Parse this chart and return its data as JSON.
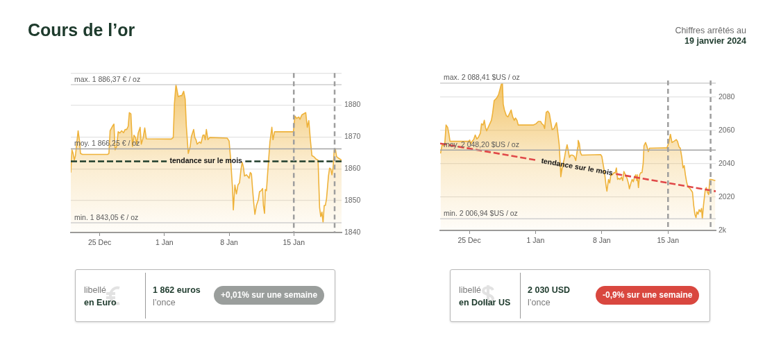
{
  "chart_data": [
    {
      "type": "other",
      "title": "Cours de l’or",
      "annotations": [
        "Chiffres arrêtés au",
        "19 janvier 2024"
      ]
    },
    {
      "type": "area",
      "xlim": [
        "2023-12-21T21:00",
        "2024-01-20T04:00"
      ],
      "xticks": [
        {
          "value": "2023-12-25",
          "label": "25 Dec"
        },
        {
          "value": "2024-01-01",
          "label": "1 Jan"
        },
        {
          "value": "2024-01-08",
          "label": "8 Jan"
        },
        {
          "value": "2024-01-15",
          "label": "15 Jan"
        }
      ],
      "ylim": [
        1840,
        1890
      ],
      "yticks": [
        1840,
        1850,
        1860,
        1870,
        1880,
        {
          "value": 1890,
          "label": null
        }
      ],
      "grid": "y",
      "series": [
        {
          "type": "area",
          "color": "#eeb23a",
          "x": [
            "2023-12-21T21:00",
            "2023-12-22T00:00",
            "2023-12-22T03:00",
            "2023-12-22T06:00",
            "2023-12-22T09:00",
            "2023-12-22T16:00",
            "2023-12-22T20:00",
            "2023-12-22T22:00",
            "2023-12-23T03:00",
            "2023-12-25T21:00",
            "2023-12-26T00:00",
            "2023-12-26T03:00",
            "2023-12-26T09:00",
            "2023-12-26T13:00",
            "2023-12-26T16:00",
            "2023-12-26T20:00",
            "2023-12-27T00:00",
            "2023-12-27T04:00",
            "2023-12-27T09:00",
            "2023-12-27T14:00",
            "2023-12-27T18:00",
            "2023-12-27T22:00",
            "2023-12-28T02:00",
            "2023-12-28T05:00",
            "2023-12-28T09:00",
            "2023-12-28T13:00",
            "2023-12-28T17:00",
            "2023-12-28T21:00",
            "2023-12-29T00:00",
            "2023-12-29T04:00",
            "2023-12-29T09:00",
            "2023-12-29T12:00",
            "2023-12-29T17:00",
            "2023-12-29T21:00",
            "2023-12-30T01:00",
            "2024-01-01T18:00",
            "2024-01-01T23:00",
            "2024-01-02T02:00",
            "2024-01-02T06:00",
            "2024-01-02T12:00",
            "2024-01-02T17:00",
            "2024-01-02T21:00",
            "2024-01-03T02:00",
            "2024-01-03T06:00",
            "2024-01-03T09:00",
            "2024-01-03T14:00",
            "2024-01-03T19:00",
            "2024-01-03T22:00",
            "2024-01-04T04:00",
            "2024-01-04T07:00",
            "2024-01-04T10:00",
            "2024-01-04T13:00",
            "2024-01-04T19:00",
            "2024-01-04T23:00",
            "2024-01-05T04:00",
            "2024-01-05T07:00",
            "2024-01-05T10:00",
            "2024-01-05T13:00",
            "2024-01-05T17:00",
            "2024-01-05T22:00",
            "2024-01-07T19:00",
            "2024-01-08T00:00",
            "2024-01-08T04:00",
            "2024-01-08T09:00",
            "2024-01-08T11:00",
            "2024-01-08T15:00",
            "2024-01-08T19:00",
            "2024-01-08T23:00",
            "2024-01-09T03:00",
            "2024-01-09T07:00",
            "2024-01-09T10:00",
            "2024-01-09T13:00",
            "2024-01-09T16:00",
            "2024-01-09T21:00",
            "2024-01-10T00:00",
            "2024-01-10T04:00",
            "2024-01-10T07:00",
            "2024-01-10T10:00",
            "2024-01-10T13:00",
            "2024-01-10T16:00",
            "2024-01-10T19:00",
            "2024-01-10T23:00",
            "2024-01-11T04:00",
            "2024-01-11T07:00",
            "2024-01-11T11:00",
            "2024-01-11T15:00",
            "2024-01-11T17:00",
            "2024-01-11T20:00",
            "2024-01-11T22:00",
            "2024-01-12T01:00",
            "2024-01-12T04:00",
            "2024-01-12T10:00",
            "2024-01-12T15:00",
            "2024-01-12T18:00",
            "2024-01-12T22:00",
            "2024-01-14T23:00",
            "2024-01-15T03:00",
            "2024-01-15T07:00",
            "2024-01-15T13:00",
            "2024-01-15T16:00",
            "2024-01-15T21:00",
            "2024-01-16T07:00",
            "2024-01-16T11:00",
            "2024-01-16T15:00",
            "2024-01-16T19:00",
            "2024-01-16T23:00",
            "2024-01-17T04:00",
            "2024-01-17T10:00",
            "2024-01-17T15:00",
            "2024-01-17T19:00",
            "2024-01-17T22:00",
            "2024-01-18T01:00",
            "2024-01-18T04:00",
            "2024-01-18T07:00",
            "2024-01-18T10:00",
            "2024-01-18T13:00",
            "2024-01-18T18:00",
            "2024-01-18T21:00",
            "2024-01-19T00:00",
            "2024-01-19T03:00",
            "2024-01-19T06:00",
            "2024-01-19T09:00",
            "2024-01-19T12:00",
            "2024-01-19T15:00",
            "2024-01-19T19:00",
            "2024-01-20T04:00"
          ],
          "values": [
            1858.8,
            1865.9,
            1864.8,
            1862.7,
            1864.1,
            1871.9,
            1868.4,
            1864.8,
            1864.5,
            1864.5,
            1864.8,
            1871.9,
            1873.3,
            1874.0,
            1865.9,
            1867.0,
            1871.6,
            1871.2,
            1871.9,
            1871.3,
            1872.3,
            1872.3,
            1873.3,
            1877.6,
            1877.2,
            1867.0,
            1870.5,
            1869.8,
            1867.7,
            1871.2,
            1873.0,
            1867.7,
            1869.8,
            1872.8,
            1869.4,
            1869.3,
            1869.8,
            1880.4,
            1886.4,
            1882.6,
            1882.9,
            1882.9,
            1884.3,
            1881.8,
            1873.3,
            1864.8,
            1867.0,
            1870.1,
            1872.3,
            1869.8,
            1869.1,
            1867.7,
            1868.4,
            1868.0,
            1870.5,
            1870.6,
            1869.1,
            1872.3,
            1869.1,
            1869.8,
            1869.6,
            1868.7,
            1863.0,
            1853.5,
            1847.1,
            1854.9,
            1852.1,
            1854.9,
            1855.6,
            1859.9,
            1862.0,
            1860.6,
            1857.7,
            1858.1,
            1857.7,
            1857.0,
            1858.8,
            1858.4,
            1853.5,
            1849.2,
            1845.7,
            1848.5,
            1850.3,
            1852.8,
            1853.1,
            1853.8,
            1848.5,
            1846.0,
            1853.5,
            1853.1,
            1858.4,
            1868.4,
            1873.0,
            1869.1,
            1871.6,
            1871.6,
            1876.5,
            1875.8,
            1876.2,
            1875.5,
            1876.9,
            1877.6,
            1873.0,
            1875.1,
            1869.1,
            1864.1,
            1863.8,
            1863.0,
            1862.7,
            1847.8,
            1845.0,
            1846.4,
            1843.1,
            1848.5,
            1848.5,
            1850.6,
            1857.7,
            1860.2,
            1859.9,
            1858.1,
            1860.2,
            1865.9,
            1866.2,
            1863.8,
            1863.4,
            1862.7
          ]
        },
        {
          "type": "line",
          "name": "tendance sur le mois",
          "color": "#1f3d2b",
          "line_style": "dashed",
          "x": [
            "2023-12-21T21:00",
            "2024-01-01T06:00",
            "2024-01-05T12:00",
            "2024-01-09T18:00",
            "2024-01-20T04:00"
          ],
          "values": [
            1862.3,
            1862.3,
            null,
            1862.3,
            1862.3
          ]
        }
      ],
      "ref_lines": [
        {
          "axis": "y",
          "value": 1886.37,
          "label": "max. 1 886,37 € / oz",
          "color": "#cfcfcf"
        },
        {
          "axis": "y",
          "value": 1866.25,
          "label": "moy. 1 866,25 € / oz",
          "color": "#a3a3a3"
        },
        {
          "axis": "y",
          "value": 1843.05,
          "label": "min. 1 843,05 € / oz",
          "color": "#cfcfcf"
        },
        {
          "axis": "x",
          "value": "2024-01-15",
          "color": "#9e9e9e",
          "line_style": "dashed"
        },
        {
          "axis": "x",
          "value": "2024-01-19T10:00",
          "color": "#9e9e9e",
          "line_style": "dashed"
        }
      ]
    },
    {
      "type": "area",
      "xlim": [
        "2023-12-21T22:00",
        "2024-01-20T01:00"
      ],
      "xticks": [
        {
          "value": "2023-12-25",
          "label": "25 Dec"
        },
        {
          "value": "2024-01-01",
          "label": "1 Jan"
        },
        {
          "value": "2024-01-08",
          "label": "8 Jan"
        },
        {
          "value": "2024-01-15",
          "label": "15 Jan"
        }
      ],
      "ylim": [
        2000,
        2090
      ],
      "yticks": [
        {
          "value": 2000,
          "label": "2k"
        },
        2020,
        2040,
        2060,
        2080
      ],
      "grid": "y",
      "series": [
        {
          "type": "area",
          "color": "#eeb23a",
          "x": [
            "2023-12-21T23:00",
            "2023-12-22T03:00",
            "2023-12-22T07:00",
            "2023-12-22T10:00",
            "2023-12-22T13:00",
            "2023-12-22T17:00",
            "2023-12-22T20:00",
            "2023-12-22T23:00",
            "2023-12-24T22:00",
            "2023-12-25T01:00",
            "2023-12-25T04:00",
            "2023-12-25T07:00",
            "2023-12-25T11:00",
            "2023-12-25T15:00",
            "2023-12-25T19:00",
            "2023-12-25T23:00",
            "2023-12-26T04:00",
            "2023-12-26T07:00",
            "2023-12-26T11:00",
            "2023-12-26T14:00",
            "2023-12-26T17:00",
            "2023-12-26T20:00",
            "2023-12-27T00:00",
            "2023-12-27T04:00",
            "2023-12-27T08:00",
            "2023-12-27T11:00",
            "2023-12-27T15:00",
            "2023-12-27T21:00",
            "2023-12-28T02:00",
            "2023-12-28T06:00",
            "2023-12-28T09:00",
            "2023-12-28T12:00",
            "2023-12-28T14:00",
            "2023-12-28T17:00",
            "2023-12-28T22:00",
            "2023-12-29T02:00",
            "2023-12-29T06:00",
            "2023-12-29T10:00",
            "2023-12-29T14:00",
            "2023-12-29T18:00",
            "2023-12-29T21:00",
            "2023-12-30T01:00",
            "2023-12-30T04:00",
            "2023-12-31T19:00",
            "2024-01-01T01:00",
            "2024-01-01T07:00",
            "2024-01-01T13:00",
            "2024-01-01T16:00",
            "2024-01-01T20:00",
            "2024-01-01T23:00",
            "2024-01-02T03:00",
            "2024-01-02T07:00",
            "2024-01-02T11:00",
            "2024-01-02T15:00",
            "2024-01-02T18:00",
            "2024-01-02T23:00",
            "2024-01-03T05:00",
            "2024-01-03T08:00",
            "2024-01-03T12:00",
            "2024-01-03T15:00",
            "2024-01-03T16:00",
            "2024-01-03T20:00",
            "2024-01-04T01:00",
            "2024-01-04T04:00",
            "2024-01-04T08:00",
            "2024-01-04T11:00",
            "2024-01-04T14:00",
            "2024-01-04T17:00",
            "2024-01-04T22:00",
            "2024-01-05T02:00",
            "2024-01-05T06:00",
            "2024-01-05T11:00",
            "2024-01-05T12:00",
            "2024-01-05T15:00",
            "2024-01-05T18:00",
            "2024-01-05T21:00",
            "2024-01-07T21:00",
            "2024-01-08T00:00",
            "2024-01-08T03:00",
            "2024-01-08T07:00",
            "2024-01-08T11:00",
            "2024-01-08T13:00",
            "2024-01-08T17:00",
            "2024-01-08T20:00",
            "2024-01-08T23:00",
            "2024-01-09T03:00",
            "2024-01-09T07:00",
            "2024-01-09T10:00",
            "2024-01-09T13:00",
            "2024-01-09T16:00",
            "2024-01-09T19:00",
            "2024-01-09T22:00",
            "2024-01-10T02:00",
            "2024-01-10T05:00",
            "2024-01-10T08:00",
            "2024-01-10T12:00",
            "2024-01-10T16:00",
            "2024-01-10T20:00",
            "2024-01-10T22:00",
            "2024-01-11T02:00",
            "2024-01-11T05:00",
            "2024-01-11T08:00",
            "2024-01-11T11:00",
            "2024-01-11T14:00",
            "2024-01-11T17:00",
            "2024-01-11T18:00",
            "2024-01-11T21:00",
            "2024-01-12T00:00",
            "2024-01-12T03:00",
            "2024-01-12T06:00",
            "2024-01-12T09:00",
            "2024-01-12T11:00",
            "2024-01-12T15:00",
            "2024-01-12T18:00",
            "2024-01-12T22:00",
            "2024-01-13T01:00",
            "2024-01-14T18:00",
            "2024-01-14T21:00",
            "2024-01-15T02:00",
            "2024-01-15T06:00",
            "2024-01-15T10:00",
            "2024-01-15T15:00",
            "2024-01-15T21:00",
            "2024-01-16T00:00",
            "2024-01-16T04:00",
            "2024-01-16T07:00",
            "2024-01-16T11:00",
            "2024-01-16T14:00",
            "2024-01-16T17:00",
            "2024-01-16T20:00",
            "2024-01-16T23:00",
            "2024-01-17T02:00",
            "2024-01-17T08:00",
            "2024-01-17T14:00",
            "2024-01-17T17:00",
            "2024-01-17T20:00",
            "2024-01-17T23:00",
            "2024-01-18T01:00",
            "2024-01-18T04:00",
            "2024-01-18T07:00",
            "2024-01-18T10:00",
            "2024-01-18T13:00",
            "2024-01-18T15:00",
            "2024-01-18T18:00",
            "2024-01-18T22:00",
            "2024-01-19T01:00",
            "2024-01-19T04:00",
            "2024-01-19T07:00",
            "2024-01-19T10:00",
            "2024-01-19T13:00",
            "2024-01-20T00:00"
          ],
          "values": [
            2046.2,
            2051.4,
            2050.8,
            2052.8,
            2063.3,
            2061.9,
            2058.4,
            2053.5,
            2053.5,
            2054.2,
            2052.1,
            2053.5,
            2054.5,
            2057.3,
            2054.9,
            2055.9,
            2058.4,
            2064.0,
            2063.3,
            2066.1,
            2061.9,
            2059.8,
            2061.9,
            2064.0,
            2066.1,
            2070.2,
            2077.9,
            2079.3,
            2081.4,
            2084.9,
            2087.7,
            2088.4,
            2075.8,
            2072.3,
            2068.9,
            2068.2,
            2070.2,
            2072.3,
            2068.2,
            2066.1,
            2067.5,
            2066.1,
            2063.3,
            2063.3,
            2064.0,
            2065.4,
            2065.4,
            2064.0,
            2063.3,
            2061.2,
            2070.9,
            2071.6,
            2070.2,
            2064.7,
            2060.5,
            2061.2,
            2064.7,
            2059.8,
            2051.4,
            2037.5,
            2032.2,
            2038.2,
            2043.1,
            2047.3,
            2051.4,
            2048.0,
            2043.8,
            2045.2,
            2045.2,
            2044.5,
            2042.0,
            2050.1,
            2054.0,
            2052.2,
            2046.6,
            2045.2,
            2045.5,
            2044.5,
            2040.3,
            2034.7,
            2026.4,
            2023.6,
            2030.6,
            2028.5,
            2033.4,
            2033.4,
            2034.7,
            2034.5,
            2037.5,
            2030.6,
            2031.3,
            2030.6,
            2032.0,
            2029.9,
            2035.4,
            2033.4,
            2031.3,
            2027.8,
            2025.0,
            2028.5,
            2030.6,
            2029.2,
            2032.0,
            2033.4,
            2029.9,
            2033.4,
            2025.7,
            2033.4,
            2034.7,
            2034.7,
            2040.3,
            2050.8,
            2052.8,
            2050.8,
            2047.3,
            2049.4,
            2049.6,
            2049.4,
            2052.8,
            2057.7,
            2052.8,
            2053.5,
            2054.5,
            2053.5,
            2050.1,
            2049.4,
            2043.8,
            2037.5,
            2038.9,
            2033.4,
            2029.2,
            2026.4,
            2025.0,
            2022.9,
            2015.2,
            2009.7,
            2007.6,
            2011.1,
            2009.7,
            2012.5,
            2011.1,
            2013.2,
            2006.9,
            2015.2,
            2023.6,
            2025.7,
            2022.9,
            2021.5,
            2030.6,
            2030.6,
            2029.9
          ]
        },
        {
          "type": "line",
          "name": "tendance sur le mois",
          "color": "#e04848",
          "line_style": "dashed",
          "x": [
            "2023-12-21T22:00",
            "2024-01-01T06:00",
            "2024-01-05T09:00",
            "2024-01-09T12:00",
            "2024-01-20T01:00"
          ],
          "values": [
            2052.2,
            2042.0,
            null,
            2033.9,
            2023.5
          ]
        }
      ],
      "ref_lines": [
        {
          "axis": "y",
          "value": 2088.41,
          "label": "max. 2 088,41 $US / oz",
          "color": "#cfcfcf"
        },
        {
          "axis": "y",
          "value": 2048.2,
          "label": "moy. 2 048,20 $US / oz",
          "color": "#a3a3a3"
        },
        {
          "axis": "y",
          "value": 2006.94,
          "label": "min. 2 006,94 $US / oz",
          "color": "#cfcfcf"
        },
        {
          "axis": "x",
          "value": "2024-01-15",
          "color": "#9e9e9e",
          "line_style": "dashed"
        },
        {
          "axis": "x",
          "value": "2024-01-19T12:00",
          "color": "#9e9e9e",
          "line_style": "dashed"
        }
      ]
    },
    {
      "type": "other",
      "annotations": [
        "libellé",
        "en Euro",
        "1 862 euros",
        "l’once",
        "+0,01% sur une semaine"
      ],
      "color": "#9a9e9c"
    },
    {
      "type": "other",
      "annotations": [
        "libellé",
        "en Dollar US",
        "2 030 USD",
        "l’once",
        "-0,9% sur une semaine"
      ],
      "color": "#d9473f"
    }
  ]
}
